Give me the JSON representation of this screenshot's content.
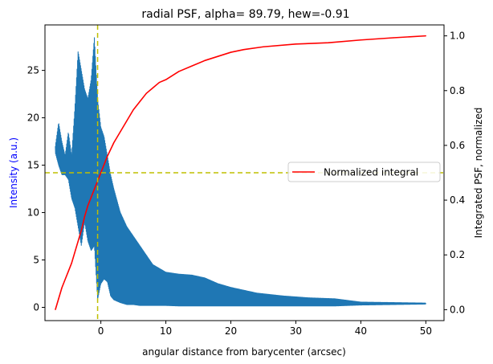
{
  "chart_data": {
    "type": "line",
    "title": "radial PSF, alpha= 89.79, hew=-0.91",
    "xlabel": "angular distance from barycenter (arcsec)",
    "ylabel_left": "Intensity (a.u.)",
    "ylabel_right": "Integrated PSF, normalized",
    "xlim": [
      -8.6,
      52.8
    ],
    "ylim_left": [
      -1.4,
      29.8
    ],
    "ylim_right": [
      -0.04,
      1.04
    ],
    "xticks": [
      0,
      10,
      20,
      30,
      40,
      50
    ],
    "yticks_left": [
      0,
      5,
      10,
      15,
      20,
      25
    ],
    "yticks_right": [
      0.0,
      0.2,
      0.4,
      0.6,
      0.8,
      1.0
    ],
    "grid": false,
    "legend": {
      "position": "right",
      "entries": [
        "Normalized integral"
      ]
    },
    "colors": {
      "intensity": "#1f77b4",
      "integral": "#ff0000",
      "reference_lines": "#bfbf00",
      "left_axis_label": "#0000ff"
    },
    "series": [
      {
        "name": "intensity",
        "axis": "left",
        "style": "oscillating",
        "x": [
          -7,
          -6.5,
          -6,
          -5.5,
          -5,
          -4.5,
          -4,
          -3.5,
          -3,
          -2.5,
          -2,
          -1.5,
          -1,
          -0.5,
          0,
          0.5,
          1,
          1.5,
          2,
          3,
          4,
          5,
          6,
          8,
          10,
          12,
          14,
          16,
          18,
          20,
          24,
          28,
          32,
          36,
          40,
          45,
          50
        ],
        "upper": [
          17,
          19.5,
          17.5,
          16,
          18.5,
          16,
          21,
          27,
          25,
          23,
          22,
          24,
          28.5,
          22,
          19,
          18,
          16,
          14,
          12.5,
          10,
          8.5,
          7.5,
          6.5,
          4.5,
          3.7,
          3.5,
          3.4,
          3.1,
          2.5,
          2.1,
          1.5,
          1.2,
          1.0,
          0.9,
          0.55,
          0.5,
          0.45
        ],
        "lower": [
          16.3,
          15,
          14,
          14,
          13.5,
          11.5,
          10.5,
          8.5,
          6.5,
          9,
          7,
          6,
          6.5,
          0.8,
          2.5,
          3,
          2.7,
          1.2,
          0.8,
          0.5,
          0.3,
          0.3,
          0.2,
          0.2,
          0.2,
          0.15,
          0.15,
          0.15,
          0.15,
          0.15,
          0.15,
          0.15,
          0.15,
          0.15,
          0.25,
          0.3,
          0.35
        ]
      },
      {
        "name": "Normalized integral",
        "axis": "right",
        "x": [
          -7,
          -6.5,
          -6,
          -5.5,
          -5,
          -4.5,
          -4,
          -3.5,
          -3,
          -2.5,
          -2,
          -1.5,
          -1,
          -0.5,
          0,
          0.5,
          1,
          2,
          3,
          4,
          5,
          6,
          7,
          8,
          9,
          10,
          12,
          14,
          16,
          18,
          20,
          22,
          25,
          30,
          35,
          40,
          45,
          50
        ],
        "y": [
          0.0,
          0.04,
          0.08,
          0.11,
          0.14,
          0.17,
          0.21,
          0.25,
          0.29,
          0.34,
          0.38,
          0.41,
          0.44,
          0.47,
          0.5,
          0.53,
          0.56,
          0.61,
          0.65,
          0.69,
          0.73,
          0.76,
          0.79,
          0.81,
          0.83,
          0.84,
          0.87,
          0.89,
          0.91,
          0.925,
          0.94,
          0.95,
          0.96,
          0.97,
          0.975,
          0.985,
          0.993,
          1.0
        ]
      }
    ],
    "reference_lines": [
      {
        "orientation": "vertical",
        "x": -0.5
      },
      {
        "orientation": "horizontal",
        "axis": "right",
        "y": 0.5
      }
    ]
  }
}
